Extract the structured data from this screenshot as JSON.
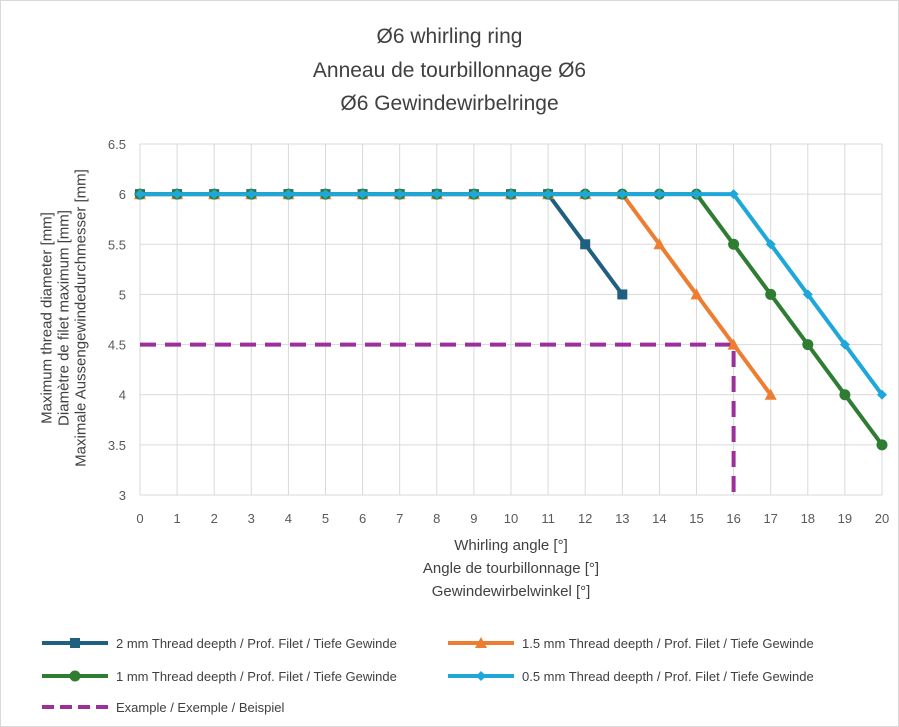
{
  "chart_data": {
    "type": "line",
    "title": [
      "Ø6 whirling ring",
      "Anneau de tourbillonnage Ø6",
      "Ø6 Gewindewirbelringe"
    ],
    "xlabel": [
      "Whirling angle [°]",
      "Angle de tourbillonnage [°]",
      "Gewindewirbelwinkel [°]"
    ],
    "ylabel": [
      "Maximum thread  diameter [mm]",
      "Diamètre de filet maximum [mm]",
      "Maximale Aussengewindedurchmesser [mm]"
    ],
    "xlim": [
      0,
      20
    ],
    "ylim": [
      3,
      6.5
    ],
    "x_ticks": [
      "0",
      "1",
      "2",
      "3",
      "4",
      "5",
      "6",
      "7",
      "8",
      "9",
      "10",
      "11",
      "12",
      "13",
      "14",
      "15",
      "16",
      "17",
      "18",
      "19",
      "20"
    ],
    "y_ticks": [
      "3",
      "3.5",
      "4",
      "4.5",
      "5",
      "5.5",
      "6",
      "6.5"
    ],
    "grid": true,
    "legend_position": "bottom",
    "series": [
      {
        "name": "2 mm Thread deepth / Prof. Filet / Tiefe Gewinde",
        "color": "#1f5f7f",
        "marker": "square",
        "x": [
          0,
          1,
          2,
          3,
          4,
          5,
          6,
          7,
          8,
          9,
          10,
          11,
          12,
          13
        ],
        "y": [
          6,
          6,
          6,
          6,
          6,
          6,
          6,
          6,
          6,
          6,
          6,
          6,
          5.5,
          5
        ]
      },
      {
        "name": "1.5 mm Thread deepth / Prof. Filet / Tiefe Gewinde",
        "color": "#ed7d31",
        "marker": "triangle",
        "x": [
          0,
          1,
          2,
          3,
          4,
          5,
          6,
          7,
          8,
          9,
          10,
          11,
          12,
          13,
          14,
          15,
          16,
          17
        ],
        "y": [
          6,
          6,
          6,
          6,
          6,
          6,
          6,
          6,
          6,
          6,
          6,
          6,
          6,
          6,
          5.5,
          5,
          4.5,
          4
        ]
      },
      {
        "name": "1 mm Thread deepth / Prof. Filet / Tiefe Gewinde",
        "color": "#2e7d32",
        "marker": "circle",
        "x": [
          0,
          1,
          2,
          3,
          4,
          5,
          6,
          7,
          8,
          9,
          10,
          11,
          12,
          13,
          14,
          15,
          16,
          17,
          18,
          19,
          20
        ],
        "y": [
          6,
          6,
          6,
          6,
          6,
          6,
          6,
          6,
          6,
          6,
          6,
          6,
          6,
          6,
          6,
          6,
          5.5,
          5,
          4.5,
          4,
          3.5
        ]
      },
      {
        "name": "0.5 mm Thread deepth / Prof. Filet / Tiefe Gewinde",
        "color": "#1ea7d8",
        "marker": "diamond",
        "x": [
          0,
          1,
          2,
          3,
          4,
          5,
          6,
          7,
          8,
          9,
          10,
          11,
          12,
          13,
          14,
          15,
          16,
          17,
          18,
          19,
          20
        ],
        "y": [
          6,
          6,
          6,
          6,
          6,
          6,
          6,
          6,
          6,
          6,
          6,
          6,
          6,
          6,
          6,
          6,
          6,
          5.5,
          5,
          4.5,
          4
        ]
      },
      {
        "name": "Example / Exemple / Beispiel",
        "color": "#9c2f9c",
        "marker": "none",
        "dashed": true,
        "x": [
          0,
          16,
          16
        ],
        "y": [
          4.5,
          4.5,
          3
        ]
      }
    ]
  }
}
